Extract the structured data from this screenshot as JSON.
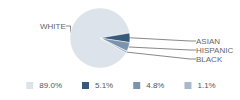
{
  "chart_data": {
    "type": "pie",
    "categories": [
      "WHITE",
      "ASIAN",
      "HISPANIC",
      "BLACK"
    ],
    "values": [
      89.0,
      5.1,
      4.8,
      1.1
    ],
    "value_labels": [
      "89.0%",
      "5.1%",
      "4.8%",
      "1.1%"
    ],
    "colors": [
      "#dde3ea",
      "#37597a",
      "#7b93ad",
      "#a9b9cb"
    ],
    "legend": "bottom"
  }
}
